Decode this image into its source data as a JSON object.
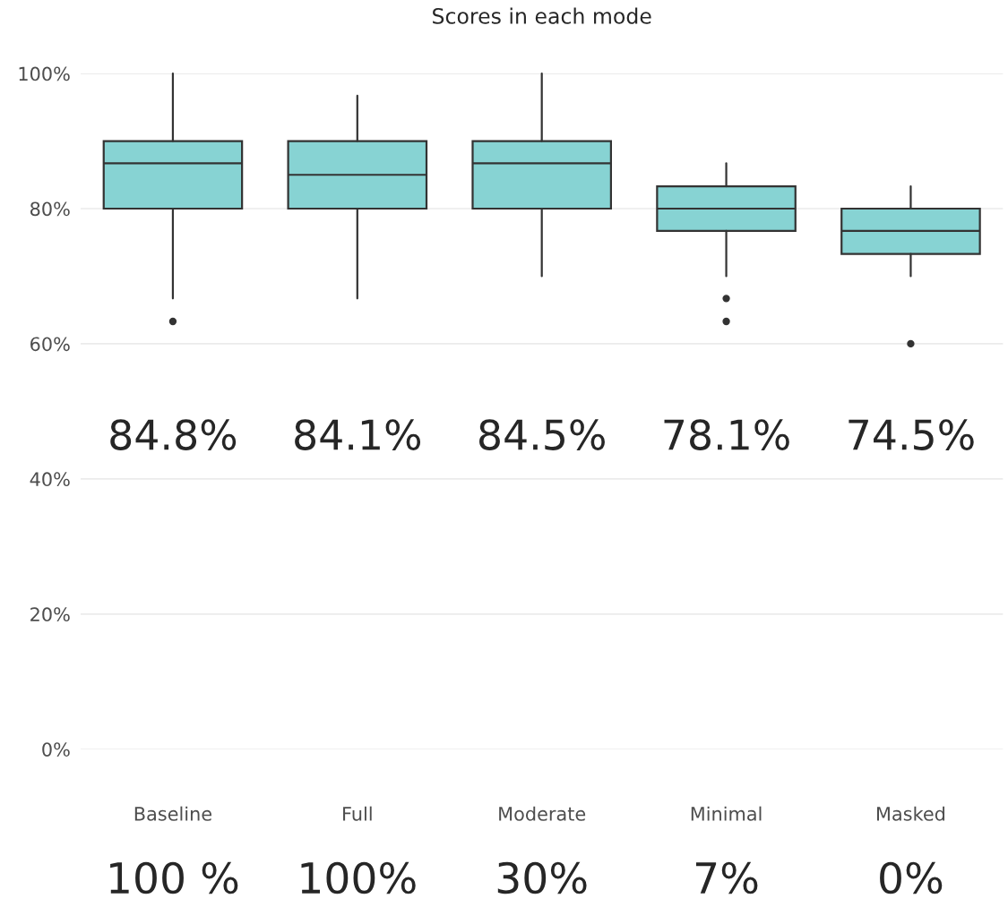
{
  "chart_data": {
    "type": "box",
    "title": "Scores in each mode",
    "categories": [
      "Baseline",
      "Full",
      "Moderate",
      "Minimal",
      "Masked"
    ],
    "boxes": [
      {
        "low": 66.7,
        "q1": 80,
        "median": 86.7,
        "q3": 90,
        "high": 100,
        "outliers": [
          63.3
        ]
      },
      {
        "low": 66.7,
        "q1": 80,
        "median": 85,
        "q3": 90,
        "high": 96.7
      },
      {
        "low": 70,
        "q1": 80,
        "median": 86.7,
        "q3": 90,
        "high": 100
      },
      {
        "low": 70,
        "q1": 76.7,
        "median": 80,
        "q3": 83.3,
        "high": 86.7,
        "outliers": [
          66.7,
          63.3
        ]
      },
      {
        "low": 70,
        "q1": 73.3,
        "median": 76.7,
        "q3": 80,
        "high": 83.3,
        "outliers": [
          60
        ]
      }
    ],
    "color": "#87d3d3",
    "ylim": [
      0,
      100
    ],
    "yticks": [
      {
        "value": 0,
        "label": "0%"
      },
      {
        "value": 20,
        "label": "20%"
      },
      {
        "value": 40,
        "label": "40%"
      },
      {
        "value": 60,
        "label": "60%"
      },
      {
        "value": 80,
        "label": "80%"
      },
      {
        "value": 100,
        "label": "100%"
      }
    ],
    "grid": "y",
    "annotations": [
      "84.8%",
      "84.1%",
      "84.5%",
      "78.1%",
      "74.5%",
      "100 %",
      "100%",
      "30%",
      "7%",
      "0%"
    ]
  }
}
